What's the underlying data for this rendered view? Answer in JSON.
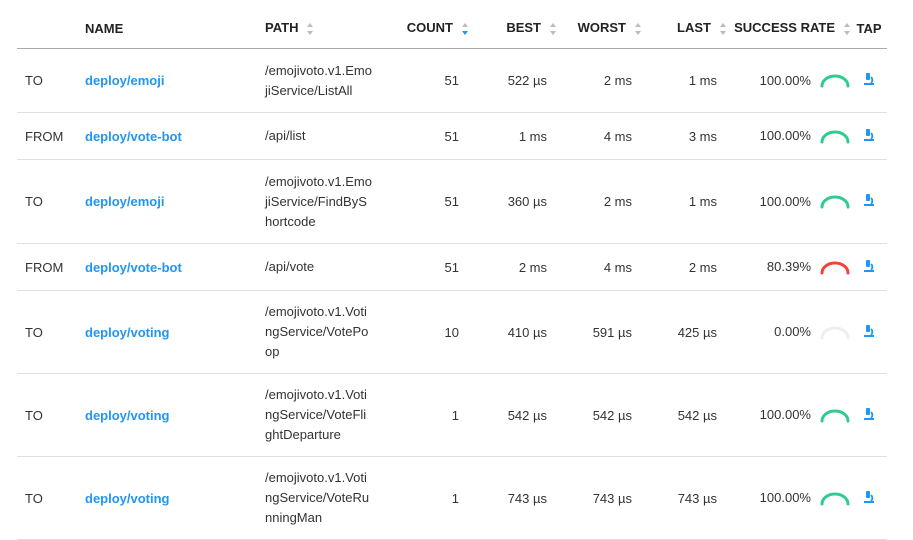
{
  "headers": {
    "direction": "",
    "name": "NAME",
    "path": "PATH",
    "count": "COUNT",
    "best": "BEST",
    "worst": "WORST",
    "last": "LAST",
    "success": "SUCCESS RATE",
    "tap": "TAP"
  },
  "sorted_column": "count",
  "colors": {
    "link": "#2196f3",
    "success_high": "#2ecc8f",
    "success_low": "#f44336",
    "success_none": "#eeeeee",
    "sort_active": "#2196f3"
  },
  "rows": [
    {
      "direction": "TO",
      "name": "deploy/emoji",
      "path": "/emojivoto.v1.EmojiService/ListAll",
      "count": "51",
      "best": "522 µs",
      "worst": "2 ms",
      "last": "1 ms",
      "success": "100.00%",
      "rate": 1.0
    },
    {
      "direction": "FROM",
      "name": "deploy/vote-bot",
      "path": "/api/list",
      "count": "51",
      "best": "1 ms",
      "worst": "4 ms",
      "last": "3 ms",
      "success": "100.00%",
      "rate": 1.0
    },
    {
      "direction": "TO",
      "name": "deploy/emoji",
      "path": "/emojivoto.v1.EmojiService/FindByShortcode",
      "count": "51",
      "best": "360 µs",
      "worst": "2 ms",
      "last": "1 ms",
      "success": "100.00%",
      "rate": 1.0
    },
    {
      "direction": "FROM",
      "name": "deploy/vote-bot",
      "path": "/api/vote",
      "count": "51",
      "best": "2 ms",
      "worst": "4 ms",
      "last": "2 ms",
      "success": "80.39%",
      "rate": 0.8039
    },
    {
      "direction": "TO",
      "name": "deploy/voting",
      "path": "/emojivoto.v1.VotingService/VotePoop",
      "count": "10",
      "best": "410 µs",
      "worst": "591 µs",
      "last": "425 µs",
      "success": "0.00%",
      "rate": 0.0
    },
    {
      "direction": "TO",
      "name": "deploy/voting",
      "path": "/emojivoto.v1.VotingService/VoteFlightDeparture",
      "count": "1",
      "best": "542 µs",
      "worst": "542 µs",
      "last": "542 µs",
      "success": "100.00%",
      "rate": 1.0
    },
    {
      "direction": "TO",
      "name": "deploy/voting",
      "path": "/emojivoto.v1.VotingService/VoteRunningMan",
      "count": "1",
      "best": "743 µs",
      "worst": "743 µs",
      "last": "743 µs",
      "success": "100.00%",
      "rate": 1.0
    }
  ]
}
